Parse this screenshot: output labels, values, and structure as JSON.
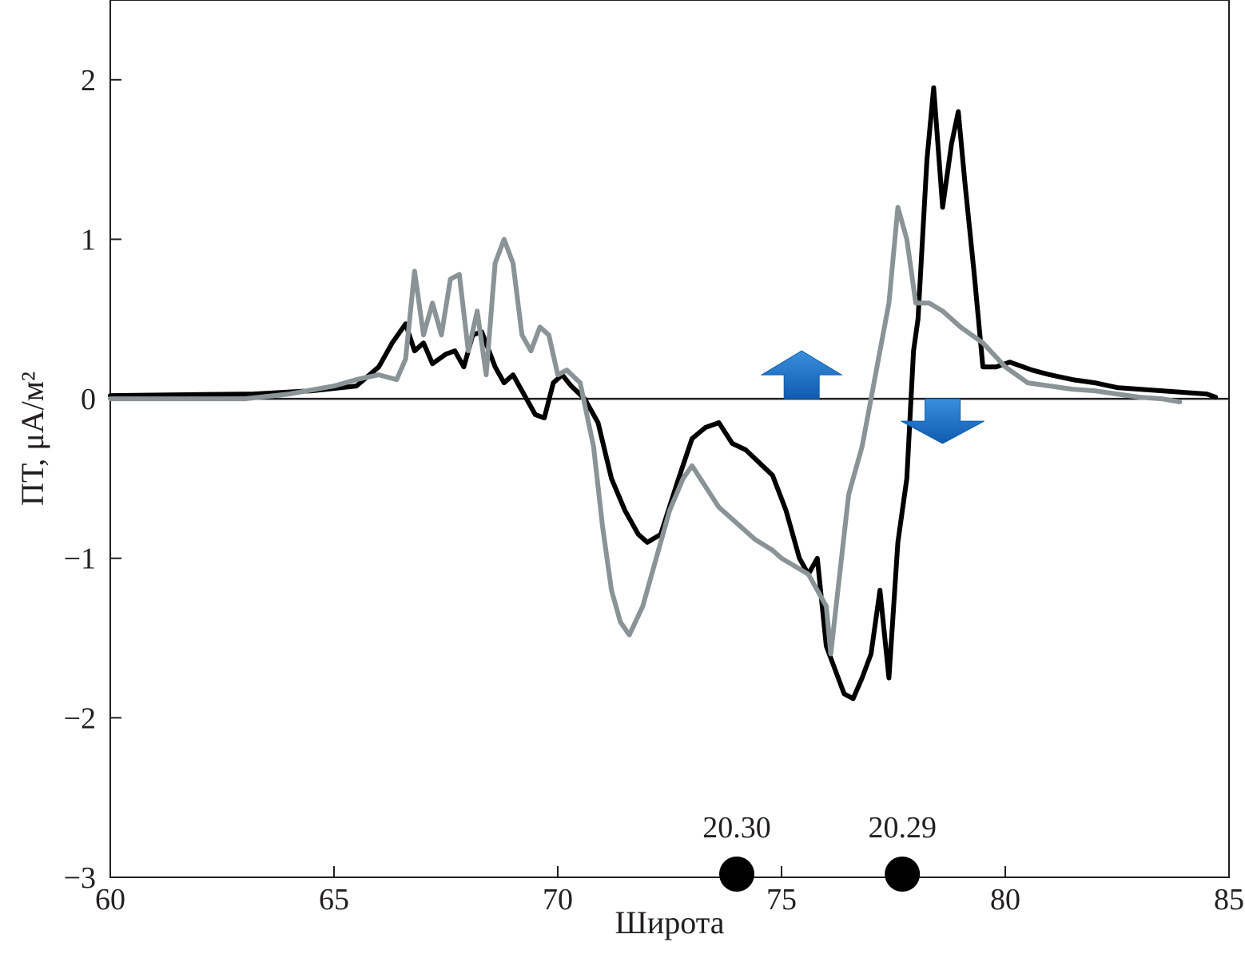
{
  "chart_data": {
    "type": "line",
    "xlabel": "Широта",
    "ylabel": "ПТ, μА/м²",
    "xlim": [
      60,
      85
    ],
    "ylim": [
      -3,
      2.5
    ],
    "x_ticks": [
      "60",
      "65",
      "70",
      "75",
      "80",
      "85"
    ],
    "y_ticks": [
      "2",
      "1",
      "0",
      "−1",
      "−2",
      "−3"
    ],
    "zero_line": true,
    "series": [
      {
        "color": "#000000",
        "x": [
          60,
          63.2,
          64.5,
          65.5,
          66.0,
          66.3,
          66.6,
          66.8,
          67.0,
          67.2,
          67.5,
          67.7,
          67.9,
          68.1,
          68.3,
          68.6,
          68.8,
          69.0,
          69.2,
          69.5,
          69.7,
          69.9,
          70.1,
          70.3,
          70.6,
          70.9,
          71.2,
          71.5,
          71.8,
          72.0,
          72.3,
          72.7,
          73.0,
          73.3,
          73.6,
          73.9,
          74.2,
          74.5,
          74.8,
          75.1,
          75.4,
          75.6,
          75.8,
          76.0,
          76.2,
          76.4,
          76.6,
          76.8,
          77.0,
          77.2,
          77.4,
          77.6,
          77.8,
          77.95,
          78.05,
          78.25,
          78.4,
          78.6,
          78.8,
          78.95,
          79.1,
          79.3,
          79.5,
          79.8,
          80.1,
          80.6,
          81.0,
          81.5,
          82.0,
          82.5,
          83.0,
          83.5,
          84.0,
          84.5,
          84.7
        ],
        "y": [
          0.02,
          0.03,
          0.05,
          0.08,
          0.2,
          0.35,
          0.47,
          0.3,
          0.35,
          0.22,
          0.28,
          0.3,
          0.2,
          0.4,
          0.42,
          0.2,
          0.1,
          0.15,
          0.05,
          -0.1,
          -0.12,
          0.1,
          0.15,
          0.08,
          0.0,
          -0.15,
          -0.5,
          -0.7,
          -0.85,
          -0.9,
          -0.85,
          -0.5,
          -0.25,
          -0.18,
          -0.15,
          -0.28,
          -0.32,
          -0.4,
          -0.48,
          -0.7,
          -1.0,
          -1.1,
          -1.0,
          -1.55,
          -1.7,
          -1.85,
          -1.88,
          -1.75,
          -1.6,
          -1.2,
          -1.75,
          -0.9,
          -0.5,
          0.3,
          0.5,
          1.5,
          1.95,
          1.2,
          1.6,
          1.8,
          1.35,
          0.8,
          0.2,
          0.2,
          0.23,
          0.18,
          0.15,
          0.12,
          0.1,
          0.07,
          0.06,
          0.05,
          0.04,
          0.03,
          0.01
        ]
      },
      {
        "color": "#8a9396",
        "x": [
          60,
          63.0,
          64.0,
          65.0,
          65.5,
          66.0,
          66.4,
          66.6,
          66.8,
          67.0,
          67.2,
          67.4,
          67.6,
          67.8,
          68.0,
          68.2,
          68.4,
          68.6,
          68.8,
          69.0,
          69.2,
          69.4,
          69.6,
          69.8,
          70.0,
          70.2,
          70.5,
          70.8,
          71.0,
          71.2,
          71.4,
          71.6,
          71.9,
          72.2,
          72.5,
          72.8,
          73.0,
          73.3,
          73.6,
          74.0,
          74.4,
          74.8,
          75.0,
          75.3,
          75.6,
          75.8,
          76.0,
          76.1,
          76.3,
          76.5,
          76.8,
          77.0,
          77.2,
          77.4,
          77.6,
          77.8,
          78.0,
          78.3,
          78.6,
          79.0,
          79.5,
          80.0,
          80.5,
          81.0,
          81.5,
          82.0,
          82.5,
          83.0,
          83.5,
          83.9
        ],
        "y": [
          0.0,
          0.0,
          0.03,
          0.08,
          0.12,
          0.15,
          0.12,
          0.25,
          0.8,
          0.4,
          0.6,
          0.4,
          0.75,
          0.78,
          0.3,
          0.55,
          0.15,
          0.85,
          1.0,
          0.85,
          0.4,
          0.3,
          0.45,
          0.4,
          0.15,
          0.18,
          0.1,
          -0.3,
          -0.8,
          -1.2,
          -1.4,
          -1.48,
          -1.3,
          -1.0,
          -0.7,
          -0.5,
          -0.42,
          -0.55,
          -0.68,
          -0.78,
          -0.88,
          -0.95,
          -1.0,
          -1.05,
          -1.1,
          -1.2,
          -1.3,
          -1.6,
          -1.1,
          -0.6,
          -0.3,
          0.0,
          0.3,
          0.6,
          1.2,
          1.0,
          0.6,
          0.6,
          0.55,
          0.45,
          0.35,
          0.2,
          0.1,
          0.08,
          0.06,
          0.05,
          0.03,
          0.01,
          0.0,
          -0.02
        ]
      }
    ],
    "markers": [
      {
        "x": 74.0,
        "label": "20.30"
      },
      {
        "x": 77.7,
        "label": "20.29"
      }
    ],
    "arrows": [
      {
        "x": 75.45,
        "direction": "up",
        "color": "#1b75c8"
      },
      {
        "x": 78.6,
        "direction": "down",
        "color": "#1b75c8"
      }
    ]
  }
}
